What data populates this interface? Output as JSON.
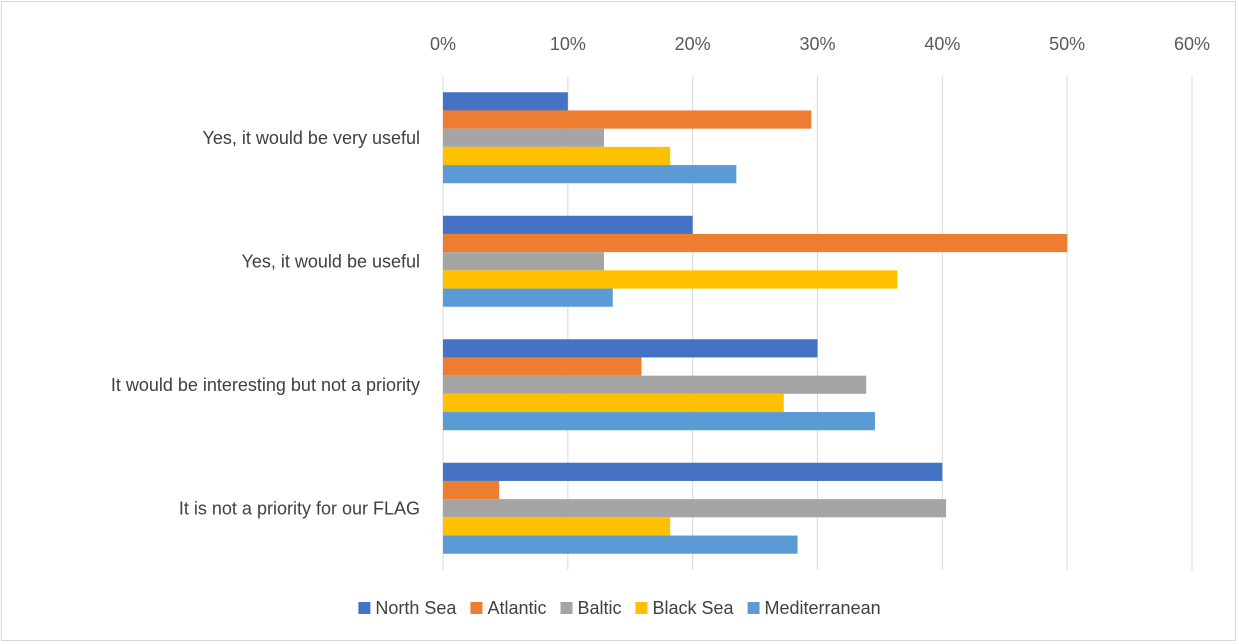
{
  "chart_data": {
    "type": "bar",
    "orientation": "horizontal",
    "x_axis_position": "top",
    "xlim": [
      0,
      0.6
    ],
    "x_ticks": [
      "0%",
      "10%",
      "20%",
      "30%",
      "40%",
      "50%",
      "60%"
    ],
    "grid": true,
    "legend_position": "bottom",
    "categories": [
      "Yes, it would be very useful",
      "Yes, it would be useful",
      "It would be interesting but not a priority",
      "It is not a priority for our FLAG"
    ],
    "series": [
      {
        "name": "North Sea",
        "color": "#4472c4",
        "values": [
          0.1,
          0.2,
          0.3,
          0.4
        ]
      },
      {
        "name": "Atlantic",
        "color": "#ed7d31",
        "values": [
          0.295,
          0.5,
          0.159,
          0.045
        ]
      },
      {
        "name": "Baltic",
        "color": "#a5a5a5",
        "values": [
          0.129,
          0.129,
          0.339,
          0.403
        ]
      },
      {
        "name": "Black Sea",
        "color": "#ffc000",
        "values": [
          0.182,
          0.364,
          0.273,
          0.182
        ]
      },
      {
        "name": "Mediterranean",
        "color": "#5b9bd5",
        "values": [
          0.235,
          0.136,
          0.346,
          0.284
        ]
      }
    ]
  }
}
